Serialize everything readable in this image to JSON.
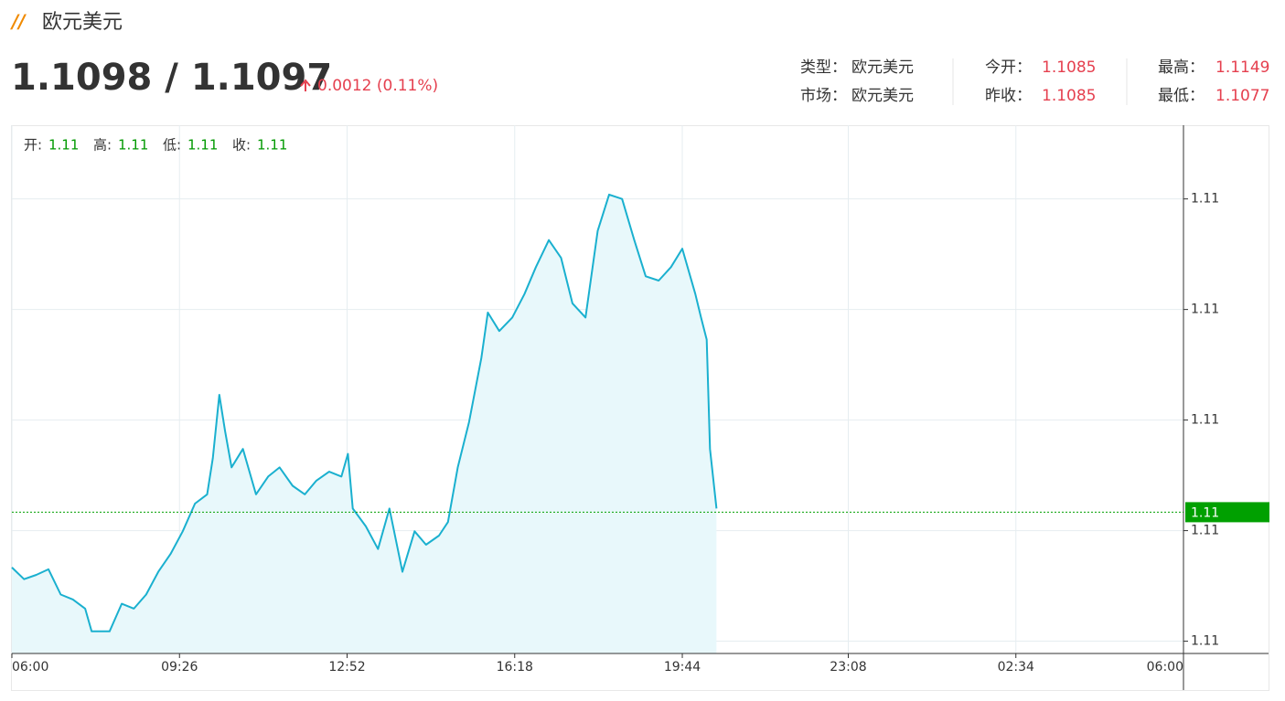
{
  "header": {
    "title": "欧元美元",
    "price": "1.1098 / 1.1097",
    "change": "0.0012 (0.11%)"
  },
  "info": [
    {
      "label": "类型：",
      "value": "欧元美元"
    },
    {
      "label": "今开：",
      "value": 1.1085
    },
    {
      "label": "最高：",
      "value": 1.1149
    },
    {
      "label": "市场：",
      "value": "欧元美元"
    },
    {
      "label": "昨收：",
      "value": 1.1085
    },
    {
      "label": "最低：",
      "value": 1.1077
    }
  ],
  "ohlc": [
    {
      "label": "开:",
      "value": 1.11
    },
    {
      "label": "高:",
      "value": 1.11
    },
    {
      "label": "低:",
      "value": 1.11
    },
    {
      "label": "收:",
      "value": 1.11
    }
  ],
  "chart_data": {
    "type": "line",
    "x": [
      0,
      15,
      30,
      45,
      60,
      75,
      90,
      98,
      105,
      120,
      135,
      150,
      165,
      180,
      195,
      210,
      225,
      240,
      247,
      255,
      262,
      270,
      284,
      300,
      315,
      329,
      345,
      360,
      374,
      390,
      405,
      413,
      419,
      435,
      450,
      464,
      480,
      495,
      509,
      525,
      536,
      548,
      562,
      577,
      585,
      599,
      615,
      630,
      644,
      660,
      675,
      689,
      705,
      720,
      734,
      750,
      765,
      779,
      795,
      810,
      824,
      840,
      847,
      854,
      858,
      866
    ],
    "values": [
      1.1088,
      1.10861,
      1.10868,
      1.10877,
      1.10836,
      1.10828,
      1.10813,
      1.10776,
      1.10776,
      1.10776,
      1.10821,
      1.10813,
      1.10836,
      1.10873,
      1.10902,
      1.10939,
      1.10984,
      1.10999,
      1.11058,
      1.11161,
      1.11102,
      1.11043,
      1.11073,
      1.10999,
      1.11028,
      1.11043,
      1.11013,
      1.10999,
      1.11021,
      1.11036,
      1.11028,
      1.11065,
      1.10976,
      1.10947,
      1.1091,
      1.10976,
      1.10873,
      1.10939,
      1.10917,
      1.10932,
      1.10954,
      1.11043,
      1.11117,
      1.11221,
      1.11295,
      1.11265,
      1.11287,
      1.11325,
      1.11369,
      1.11413,
      1.11384,
      1.1131,
      1.11287,
      1.11428,
      1.11487,
      1.1148,
      1.11413,
      1.11354,
      1.11347,
      1.11369,
      1.11399,
      1.11325,
      1.11287,
      1.11251,
      1.11073,
      1.10976
    ],
    "color": "#1ab0cf",
    "fill_color": "#e8f8fb",
    "xlim": [
      0,
      1440
    ],
    "ylim": [
      1.1074,
      1.116
    ],
    "xticks": [
      {
        "value": 0,
        "label": "06:00"
      },
      {
        "value": 206,
        "label": "09:26"
      },
      {
        "value": 412,
        "label": "12:52"
      },
      {
        "value": 618,
        "label": "16:18"
      },
      {
        "value": 824,
        "label": "19:44"
      },
      {
        "value": 1028,
        "label": "23:08"
      },
      {
        "value": 1234,
        "label": "02:34"
      },
      {
        "value": 1440,
        "label": "06:00"
      }
    ],
    "yticks": [
      {
        "value": 1.1076,
        "label": "1.11"
      },
      {
        "value": 1.1094,
        "label": "1.11"
      },
      {
        "value": 1.1112,
        "label": "1.11"
      },
      {
        "value": 1.113,
        "label": "1.11"
      },
      {
        "value": 1.1148,
        "label": "1.11"
      }
    ],
    "grid": true,
    "current": {
      "value": 1.1097,
      "label": "1.11"
    },
    "current_color": "#00a000"
  }
}
